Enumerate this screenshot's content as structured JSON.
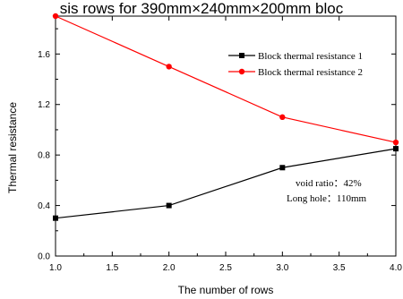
{
  "chart_data": {
    "type": "line",
    "title": "sis rows for 390mm×240mm×200mm bloc",
    "xlabel": "The number of rows",
    "ylabel": "Thermal resistance",
    "xlim": [
      1.0,
      4.0
    ],
    "ylim": [
      0.0,
      1.9
    ],
    "x": [
      1.0,
      2.0,
      3.0,
      4.0
    ],
    "xticks": [
      "1.0",
      "1.5",
      "2.0",
      "2.5",
      "3.0",
      "3.5",
      "4.0"
    ],
    "yticks": [
      "0.0",
      "0.4",
      "0.8",
      "1.2",
      "1.6"
    ],
    "grid": false,
    "legend_position": "top-right",
    "series": [
      {
        "name": "Block thermal resistance 1",
        "values": [
          0.3,
          0.4,
          0.7,
          0.85
        ],
        "color": "#000000",
        "marker": "square"
      },
      {
        "name": "Block thermal resistance 2",
        "values": [
          1.9,
          1.5,
          1.1,
          0.9
        ],
        "color": "#ff0000",
        "marker": "circle"
      }
    ],
    "annotations": [
      "void ratio：42%",
      "Long hole：110mm"
    ]
  }
}
